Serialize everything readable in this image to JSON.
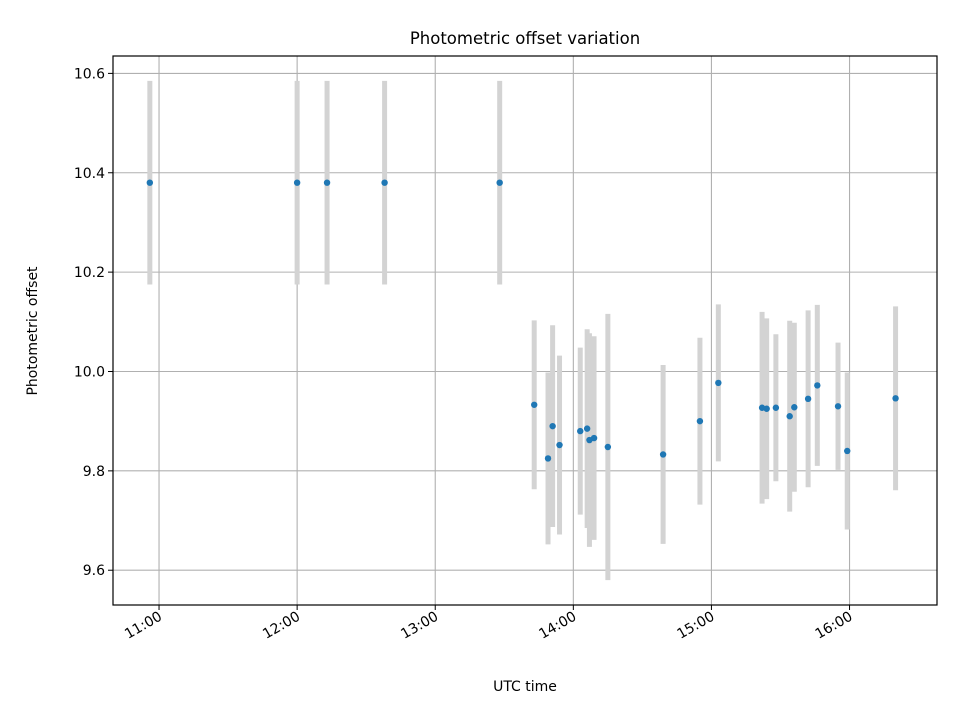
{
  "chart_data": {
    "type": "scatter",
    "title": "Photometric offset variation",
    "xlabel": "UTC time",
    "ylabel": "Photometric offset",
    "x_axis": {
      "kind": "time",
      "range": [
        "10:40",
        "16:38"
      ],
      "ticks": [
        "11:00",
        "12:00",
        "13:00",
        "14:00",
        "15:00",
        "16:00"
      ]
    },
    "y_axis": {
      "range": [
        9.53,
        10.635
      ],
      "ticks": [
        9.6,
        9.8,
        10.0,
        10.2,
        10.4,
        10.6
      ],
      "tick_labels": [
        "9.6",
        "9.8",
        "10.0",
        "10.2",
        "10.4",
        "10.6"
      ]
    },
    "grid": true,
    "colors": {
      "marker": "#1f77b4",
      "errorbar": "#d3d3d3"
    },
    "points": [
      {
        "x": "10:56",
        "y": 10.38,
        "err": 0.205
      },
      {
        "x": "12:00",
        "y": 10.38,
        "err": 0.205
      },
      {
        "x": "12:13",
        "y": 10.38,
        "err": 0.205
      },
      {
        "x": "12:38",
        "y": 10.38,
        "err": 0.205
      },
      {
        "x": "13:28",
        "y": 10.38,
        "err": 0.205
      },
      {
        "x": "13:43",
        "y": 9.933,
        "err": 0.17
      },
      {
        "x": "13:49",
        "y": 9.825,
        "err": 0.173
      },
      {
        "x": "13:51",
        "y": 9.89,
        "err": 0.203
      },
      {
        "x": "13:54",
        "y": 9.852,
        "err": 0.18
      },
      {
        "x": "14:03",
        "y": 9.88,
        "err": 0.168
      },
      {
        "x": "14:06",
        "y": 9.885,
        "err": 0.2
      },
      {
        "x": "14:07",
        "y": 9.862,
        "err": 0.215
      },
      {
        "x": "14:09",
        "y": 9.866,
        "err": 0.205
      },
      {
        "x": "14:15",
        "y": 9.848,
        "err": 0.268
      },
      {
        "x": "14:39",
        "y": 9.833,
        "err": 0.18
      },
      {
        "x": "14:55",
        "y": 9.9,
        "err": 0.168
      },
      {
        "x": "15:03",
        "y": 9.977,
        "err": 0.158
      },
      {
        "x": "15:22",
        "y": 9.927,
        "err": 0.193
      },
      {
        "x": "15:24",
        "y": 9.925,
        "err": 0.182
      },
      {
        "x": "15:28",
        "y": 9.927,
        "err": 0.148
      },
      {
        "x": "15:34",
        "y": 9.91,
        "err": 0.192
      },
      {
        "x": "15:36",
        "y": 9.928,
        "err": 0.17
      },
      {
        "x": "15:42",
        "y": 9.945,
        "err": 0.178
      },
      {
        "x": "15:46",
        "y": 9.972,
        "err": 0.162
      },
      {
        "x": "15:55",
        "y": 9.93,
        "err": 0.128
      },
      {
        "x": "15:59",
        "y": 9.84,
        "err": 0.158
      },
      {
        "x": "16:20",
        "y": 9.946,
        "err": 0.185
      }
    ]
  }
}
